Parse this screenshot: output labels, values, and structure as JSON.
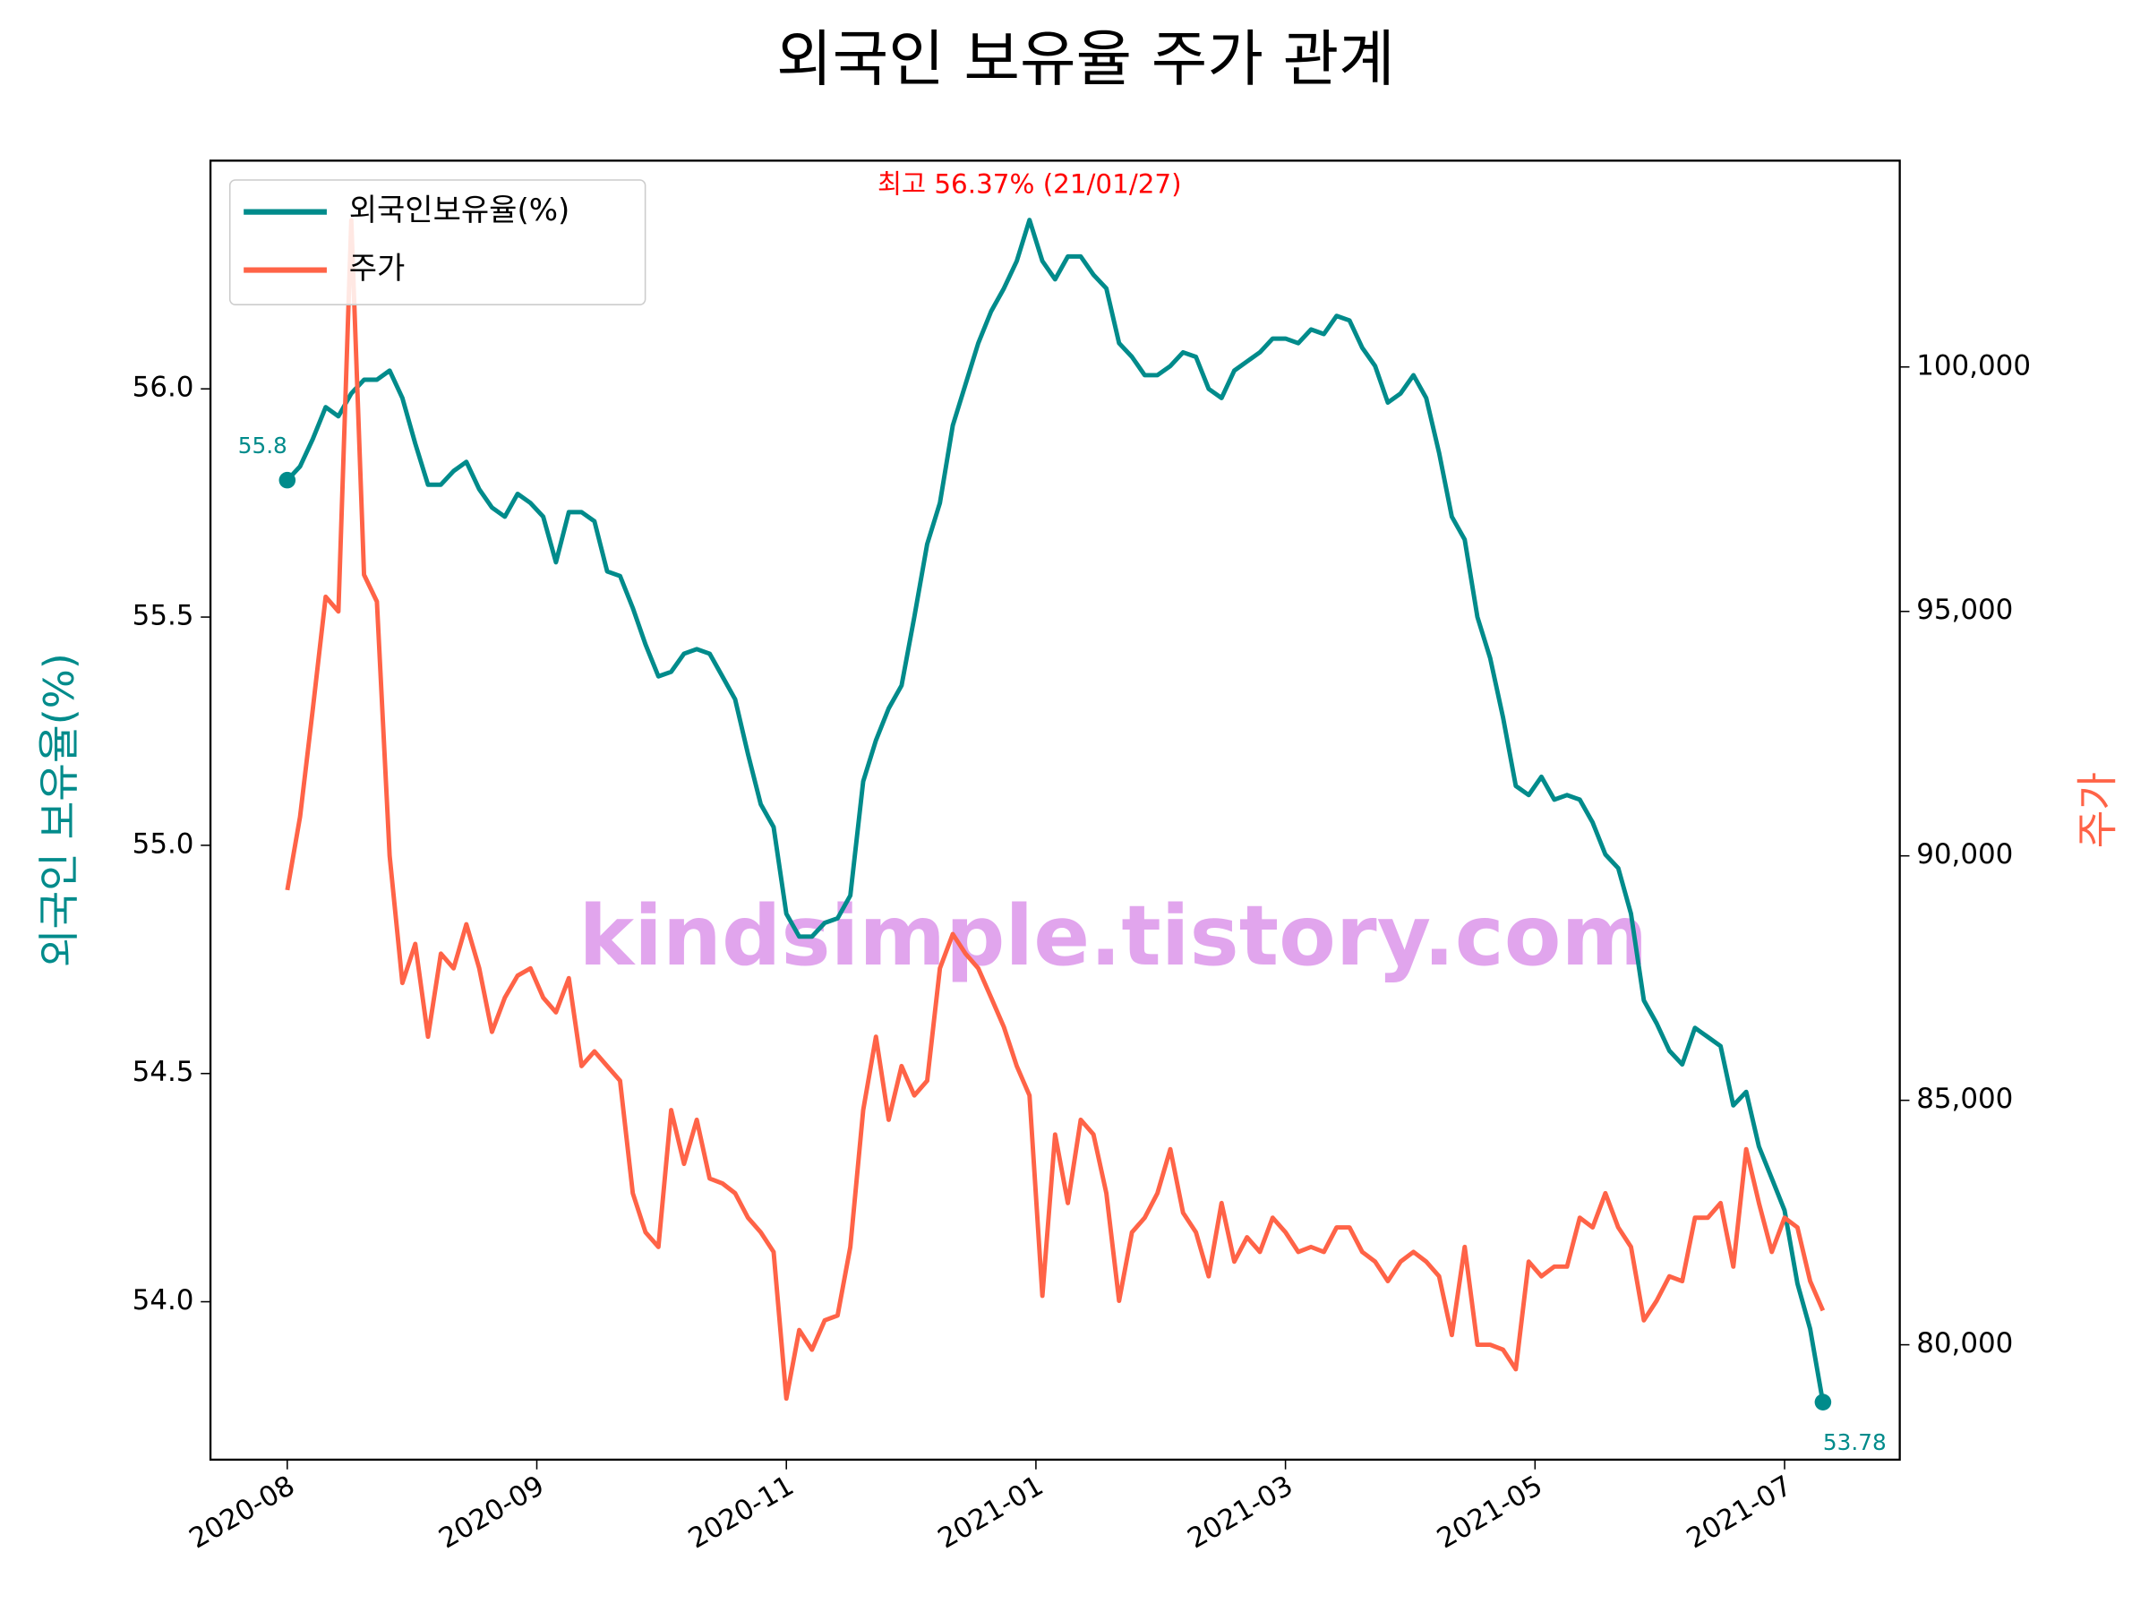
{
  "chart_data": {
    "type": "line",
    "title": "외국인 보유율 주가 관계",
    "ylabel": "외국인 보유율(%)",
    "y2label": "주가",
    "watermark": "kindsimple.tistory.com",
    "legend": "upper left",
    "x": [
      0,
      2,
      4,
      6,
      8,
      10,
      12,
      14,
      16,
      18,
      20,
      22,
      24,
      26,
      28,
      30,
      32,
      34,
      36,
      38,
      40,
      42,
      44,
      46,
      48,
      50,
      52,
      54,
      56,
      58,
      60,
      62,
      64,
      66,
      68,
      70,
      72,
      74,
      76,
      78,
      80,
      82,
      84,
      86,
      88,
      90,
      92,
      94,
      96,
      98,
      100,
      102,
      104,
      106,
      108,
      110,
      112,
      114,
      116,
      118,
      120,
      122,
      124,
      126,
      128,
      130,
      132,
      134,
      136,
      138,
      140,
      142,
      144,
      146,
      148,
      150,
      152,
      154,
      156,
      158,
      160,
      162,
      164,
      166,
      168,
      170,
      172,
      174,
      176,
      178,
      180,
      182,
      184,
      186,
      188,
      190,
      192,
      194,
      196,
      198,
      200,
      202,
      204,
      206,
      208,
      210,
      212,
      214,
      216,
      218,
      220,
      222,
      224,
      226,
      228,
      230,
      232,
      234,
      236,
      238,
      240
    ],
    "xlim": [
      -12,
      252
    ],
    "xticks": [
      {
        "value": 0,
        "label": "2020-08"
      },
      {
        "value": 39,
        "label": "2020-09"
      },
      {
        "value": 78,
        "label": "2020-11"
      },
      {
        "value": 117,
        "label": "2021-01"
      },
      {
        "value": 156,
        "label": "2021-03"
      },
      {
        "value": 195,
        "label": "2021-05"
      },
      {
        "value": 234,
        "label": "2021-07"
      }
    ],
    "ylim": [
      53.654,
      56.5
    ],
    "yticks": [
      {
        "value": 54,
        "label": "54.0"
      },
      54.5,
      {
        "value": 55,
        "label": "55.0"
      },
      55.5,
      {
        "value": 56,
        "label": "56.0"
      }
    ],
    "y2lim": [
      77650,
      104220
    ],
    "y2ticks": [
      {
        "value": 80000,
        "label": "80,000"
      },
      {
        "value": 85000,
        "label": "85,000"
      },
      {
        "value": 90000,
        "label": "90,000"
      },
      {
        "value": 95000,
        "label": "95,000"
      },
      {
        "value": 100000,
        "label": "100,000"
      }
    ],
    "series": [
      {
        "name": "외국인보유율(%)",
        "color": "#008b8b",
        "axis": "y",
        "values": [
          55.8,
          55.83,
          55.89,
          55.96,
          55.94,
          55.99,
          56.02,
          56.02,
          56.04,
          55.98,
          55.88,
          55.79,
          55.79,
          55.82,
          55.84,
          55.78,
          55.74,
          55.72,
          55.77,
          55.75,
          55.72,
          55.62,
          55.73,
          55.73,
          55.71,
          55.6,
          55.59,
          55.52,
          55.44,
          55.37,
          55.38,
          55.42,
          55.43,
          55.42,
          55.37,
          55.32,
          55.2,
          55.09,
          55.04,
          54.85,
          54.8,
          54.8,
          54.83,
          54.84,
          54.89,
          55.14,
          55.23,
          55.3,
          55.35,
          55.5,
          55.66,
          55.75,
          55.92,
          56.01,
          56.1,
          56.17,
          56.22,
          56.28,
          56.37,
          56.28,
          56.24,
          56.29,
          56.29,
          56.25,
          56.22,
          56.1,
          56.07,
          56.03,
          56.03,
          56.05,
          56.08,
          56.07,
          56.0,
          55.98,
          56.04,
          56.06,
          56.08,
          56.11,
          56.11,
          56.1,
          56.13,
          56.12,
          56.16,
          56.15,
          56.09,
          56.05,
          55.97,
          55.99,
          56.03,
          55.98,
          55.86,
          55.72,
          55.67,
          55.5,
          55.41,
          55.28,
          55.13,
          55.11,
          55.15,
          55.1,
          55.11,
          55.1,
          55.05,
          54.98,
          54.95,
          54.85,
          54.66,
          54.61,
          54.55,
          54.52,
          54.6,
          54.58,
          54.56,
          54.43,
          54.46,
          54.34,
          54.27,
          54.2,
          54.04,
          53.94,
          53.78
        ]
      },
      {
        "name": "주가",
        "color": "#ff6347",
        "axis": "y2",
        "values": [
          89300,
          90800,
          93000,
          95300,
          95000,
          103000,
          95750,
          95200,
          90000,
          87400,
          88200,
          86300,
          88000,
          87700,
          88600,
          87700,
          86400,
          87100,
          87550,
          87700,
          87100,
          86800,
          87500,
          85700,
          86000,
          85700,
          85400,
          83100,
          82300,
          82000,
          84800,
          83700,
          84600,
          83400,
          83300,
          83100,
          82600,
          82300,
          81900,
          78900,
          80300,
          79900,
          80500,
          80600,
          82000,
          84800,
          86300,
          84600,
          85700,
          85100,
          85400,
          87700,
          88400,
          88000,
          87700,
          87100,
          86500,
          85700,
          85100,
          81000,
          84300,
          82900,
          84600,
          84300,
          83100,
          80900,
          82300,
          82600,
          83100,
          84000,
          82700,
          82300,
          81400,
          82900,
          81700,
          82200,
          81900,
          82600,
          82300,
          81900,
          82000,
          81900,
          82400,
          82400,
          81900,
          81700,
          81300,
          81700,
          81900,
          81700,
          81400,
          80200,
          82000,
          80000,
          80000,
          79900,
          79500,
          81700,
          81400,
          81600,
          81600,
          82600,
          82400,
          83100,
          82400,
          82000,
          80500,
          80900,
          81400,
          81300,
          82600,
          82600,
          82900,
          81600,
          84000,
          82900,
          81900,
          82600,
          82400,
          81300,
          80700
        ]
      }
    ],
    "annotations": [
      "55.8",
      "53.78",
      "최고 56.37% (21/01/27)"
    ]
  }
}
